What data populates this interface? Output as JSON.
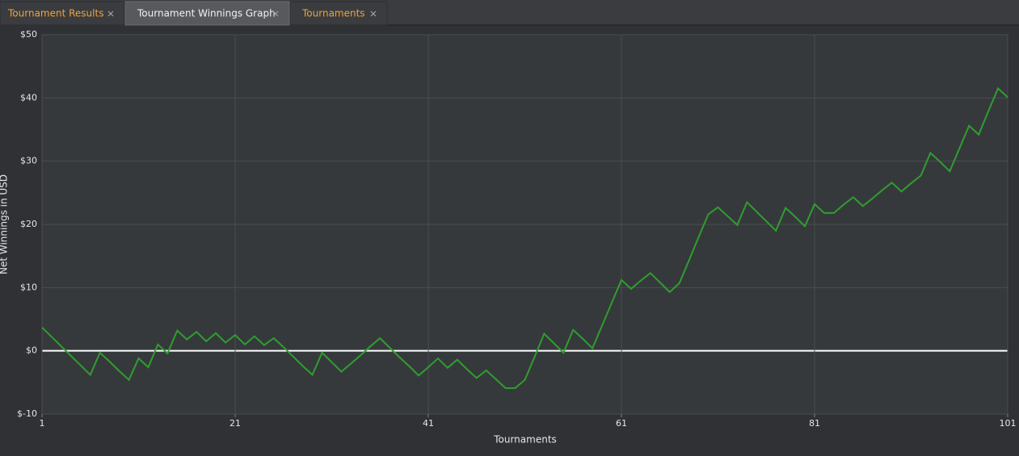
{
  "tabs": [
    {
      "label": "Tournament Results",
      "active": false
    },
    {
      "label": "Tournament Winnings Graph",
      "active": true
    },
    {
      "label": "Tournaments",
      "active": false
    }
  ],
  "chart_data": {
    "type": "line",
    "x_label": "Tournaments",
    "y_label": "Net Winnings in USD",
    "color": "#2e9e2e",
    "x": [
      1,
      2,
      3,
      4,
      5,
      6,
      7,
      8,
      9,
      10,
      11,
      12,
      13,
      14,
      15,
      16,
      17,
      18,
      19,
      20,
      21,
      22,
      23,
      24,
      25,
      26,
      27,
      28,
      29,
      30,
      31,
      32,
      33,
      34,
      35,
      36,
      37,
      38,
      39,
      40,
      41,
      42,
      43,
      44,
      45,
      46,
      47,
      48,
      49,
      50,
      51,
      52,
      53,
      54,
      55,
      56,
      57,
      58,
      59,
      60,
      61,
      62,
      63,
      64,
      65,
      66,
      67,
      68,
      69,
      70,
      71,
      72,
      73,
      74,
      75,
      76,
      77,
      78,
      79,
      80,
      81,
      82,
      83,
      84,
      85,
      86,
      87,
      88,
      89,
      90,
      91,
      92,
      93,
      94,
      95,
      96,
      97,
      98,
      99,
      100,
      101
    ],
    "values": [
      3.7,
      2.2,
      0.7,
      -0.8,
      -2.3,
      -3.8,
      -0.3,
      -1.7,
      -3.2,
      -4.6,
      -1.2,
      -2.6,
      1.0,
      -0.4,
      3.2,
      1.8,
      3.0,
      1.5,
      2.8,
      1.3,
      2.5,
      1.0,
      2.3,
      0.9,
      2.0,
      0.6,
      -0.9,
      -2.4,
      -3.8,
      -0.3,
      -1.8,
      -3.3,
      -2.0,
      -0.7,
      0.7,
      2.0,
      0.5,
      -1.0,
      -2.4,
      -3.9,
      -2.6,
      -1.2,
      -2.7,
      -1.4,
      -2.9,
      -4.3,
      -3.1,
      -4.5,
      -5.9,
      -5.9,
      -4.6,
      -1.0,
      2.7,
      1.2,
      -0.3,
      3.3,
      1.9,
      0.4,
      4.0,
      7.6,
      11.2,
      9.8,
      11.1,
      12.3,
      10.8,
      9.3,
      10.7,
      14.3,
      18.0,
      21.6,
      22.7,
      21.3,
      19.9,
      23.5,
      22.0,
      20.5,
      19.0,
      22.6,
      21.2,
      19.7,
      23.2,
      21.8,
      21.8,
      23.1,
      24.3,
      22.9,
      24.1,
      25.4,
      26.6,
      25.2,
      26.5,
      27.7,
      31.3,
      29.9,
      28.4,
      32.0,
      35.6,
      34.2,
      37.9,
      41.5,
      40.1
    ],
    "xlim": [
      1,
      101
    ],
    "xticks": [
      1,
      21,
      41,
      61,
      81,
      101
    ],
    "ylim": [
      -10,
      50
    ],
    "yticks": [
      {
        "value": -10,
        "label": "$-10"
      },
      {
        "value": 0,
        "label": "$0"
      },
      {
        "value": 10,
        "label": "$10"
      },
      {
        "value": 20,
        "label": "$20"
      },
      {
        "value": 30,
        "label": "$30"
      },
      {
        "value": 40,
        "label": "$40"
      },
      {
        "value": 50,
        "label": "$50"
      }
    ],
    "grid": true
  }
}
